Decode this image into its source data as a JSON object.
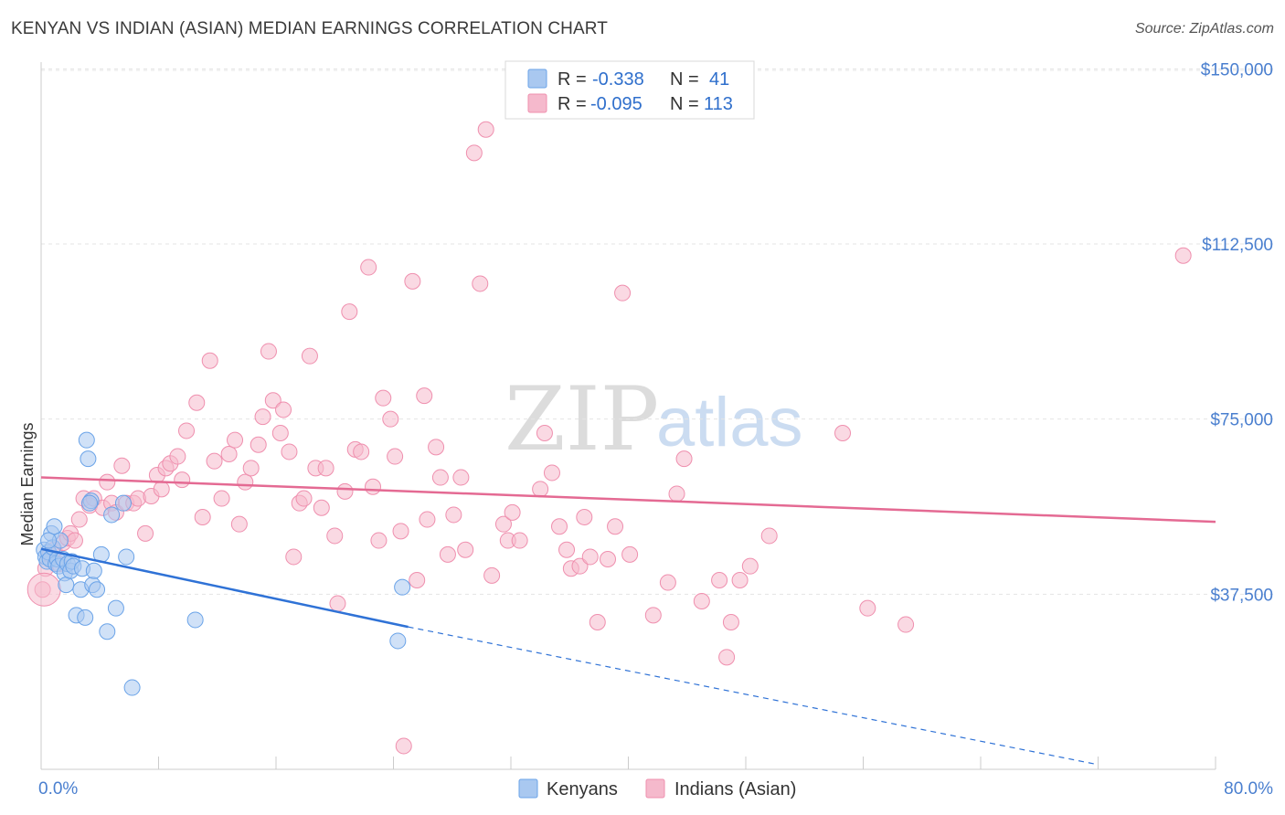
{
  "header": {
    "title": "KENYAN VS INDIAN (ASIAN) MEDIAN EARNINGS CORRELATION CHART",
    "source": "Source: ZipAtlas.com"
  },
  "watermark": {
    "zip": "ZIP",
    "atlas": "atlas"
  },
  "legend_top": {
    "rows": [
      {
        "r_label": "R =",
        "r_value": "-0.338",
        "n_label": "N =",
        "n_value": "41",
        "color": "#a9c8f0"
      },
      {
        "r_label": "R =",
        "r_value": "-0.095",
        "n_label": "N =",
        "n_value": "113",
        "color": "#f5b9cc"
      }
    ]
  },
  "legend_bottom": {
    "items": [
      {
        "label": "Kenyans",
        "color": "#a9c8f0"
      },
      {
        "label": "Indians (Asian)",
        "color": "#f5b9cc"
      }
    ]
  },
  "chart_data": {
    "type": "scatter",
    "title": "KENYAN VS INDIAN (ASIAN) MEDIAN EARNINGS CORRELATION CHART",
    "xlabel": "",
    "ylabel": "Median Earnings",
    "xlim": [
      0,
      80
    ],
    "ylim": [
      0,
      153000
    ],
    "x_tick_labels": [
      "0.0%",
      "80.0%"
    ],
    "y_ticks": [
      37500,
      75000,
      112500,
      150000
    ],
    "y_tick_labels": [
      "$37,500",
      "$75,000",
      "$112,500",
      "$150,000"
    ],
    "grid": true,
    "legend_placement": "top-center",
    "series": [
      {
        "name": "Kenyans",
        "color": "#6aa3e8",
        "fill": "#a9c8f0",
        "line_color": "#2f72d6",
        "trend": {
          "x0": 0,
          "y0": 47200,
          "x1": 25,
          "y1": 30500,
          "dashed_to_x": 72,
          "dashed_y_end": 1000
        },
        "points": [
          [
            0.2,
            47000
          ],
          [
            0.3,
            45500
          ],
          [
            0.4,
            44500
          ],
          [
            0.5,
            46500
          ],
          [
            0.6,
            45000
          ],
          [
            0.7,
            50500
          ],
          [
            0.8,
            47500
          ],
          [
            0.9,
            52000
          ],
          [
            1.0,
            44000
          ],
          [
            1.1,
            45000
          ],
          [
            1.2,
            43500
          ],
          [
            1.3,
            49000
          ],
          [
            1.5,
            45000
          ],
          [
            1.6,
            42000
          ],
          [
            1.7,
            39500
          ],
          [
            1.8,
            44000
          ],
          [
            2.0,
            42500
          ],
          [
            2.1,
            44500
          ],
          [
            2.2,
            43500
          ],
          [
            2.4,
            33000
          ],
          [
            2.7,
            38500
          ],
          [
            2.8,
            43000
          ],
          [
            3.0,
            32500
          ],
          [
            3.1,
            70500
          ],
          [
            3.2,
            66500
          ],
          [
            3.4,
            57500
          ],
          [
            3.5,
            39500
          ],
          [
            3.6,
            42500
          ],
          [
            3.8,
            38500
          ],
          [
            4.1,
            46000
          ],
          [
            4.5,
            29500
          ],
          [
            4.8,
            54500
          ],
          [
            5.1,
            34500
          ],
          [
            5.6,
            57000
          ],
          [
            5.8,
            45500
          ],
          [
            6.2,
            17500
          ],
          [
            10.5,
            32000
          ],
          [
            24.6,
            39000
          ],
          [
            24.3,
            27500
          ],
          [
            3.3,
            57000
          ],
          [
            0.5,
            49000
          ]
        ]
      },
      {
        "name": "Indians (Asian)",
        "color": "#ef8fae",
        "fill": "#f5b9cc",
        "line_color": "#e46a93",
        "trend": {
          "x0": 0,
          "y0": 62500,
          "x1": 80,
          "y1": 53000
        },
        "points": [
          [
            0.1,
            38500
          ],
          [
            0.3,
            43000
          ],
          [
            0.6,
            46000
          ],
          [
            0.9,
            47000
          ],
          [
            1.2,
            44000
          ],
          [
            1.5,
            48500
          ],
          [
            1.8,
            49500
          ],
          [
            2.0,
            50500
          ],
          [
            2.3,
            49000
          ],
          [
            2.6,
            53500
          ],
          [
            2.9,
            58000
          ],
          [
            3.3,
            56500
          ],
          [
            3.6,
            58000
          ],
          [
            4.2,
            56000
          ],
          [
            4.5,
            61500
          ],
          [
            4.8,
            57000
          ],
          [
            5.1,
            55000
          ],
          [
            5.5,
            65000
          ],
          [
            5.8,
            57000
          ],
          [
            6.3,
            57000
          ],
          [
            6.6,
            58000
          ],
          [
            7.1,
            50500
          ],
          [
            7.5,
            58500
          ],
          [
            7.9,
            63000
          ],
          [
            8.2,
            60000
          ],
          [
            8.5,
            64500
          ],
          [
            8.8,
            65500
          ],
          [
            9.3,
            67000
          ],
          [
            9.6,
            62000
          ],
          [
            9.9,
            72500
          ],
          [
            10.6,
            78500
          ],
          [
            11.0,
            54000
          ],
          [
            11.5,
            87500
          ],
          [
            11.8,
            66000
          ],
          [
            12.3,
            58000
          ],
          [
            12.8,
            67500
          ],
          [
            13.2,
            70500
          ],
          [
            13.5,
            52500
          ],
          [
            13.9,
            61500
          ],
          [
            14.3,
            64500
          ],
          [
            14.8,
            69500
          ],
          [
            15.1,
            75500
          ],
          [
            15.5,
            89500
          ],
          [
            15.8,
            79000
          ],
          [
            16.3,
            72000
          ],
          [
            16.5,
            77000
          ],
          [
            16.9,
            68000
          ],
          [
            17.2,
            45500
          ],
          [
            17.6,
            57000
          ],
          [
            17.9,
            58000
          ],
          [
            18.3,
            88500
          ],
          [
            18.7,
            64500
          ],
          [
            19.1,
            56000
          ],
          [
            19.4,
            64500
          ],
          [
            20.0,
            50000
          ],
          [
            20.2,
            35500
          ],
          [
            20.7,
            59500
          ],
          [
            21.0,
            98000
          ],
          [
            21.4,
            68500
          ],
          [
            21.8,
            68000
          ],
          [
            22.3,
            107500
          ],
          [
            22.6,
            60500
          ],
          [
            23.0,
            49000
          ],
          [
            23.3,
            79500
          ],
          [
            23.8,
            75000
          ],
          [
            24.1,
            67000
          ],
          [
            24.5,
            51000
          ],
          [
            24.7,
            5000
          ],
          [
            25.3,
            104500
          ],
          [
            25.6,
            40500
          ],
          [
            26.1,
            80000
          ],
          [
            26.3,
            53500
          ],
          [
            26.9,
            69000
          ],
          [
            27.2,
            62500
          ],
          [
            27.7,
            46000
          ],
          [
            28.1,
            54500
          ],
          [
            28.6,
            62500
          ],
          [
            28.9,
            47000
          ],
          [
            29.5,
            132000
          ],
          [
            29.9,
            104000
          ],
          [
            30.3,
            137000
          ],
          [
            30.7,
            41500
          ],
          [
            31.5,
            52500
          ],
          [
            31.8,
            49000
          ],
          [
            32.1,
            55000
          ],
          [
            32.6,
            49000
          ],
          [
            34.0,
            60000
          ],
          [
            34.3,
            72000
          ],
          [
            34.8,
            63500
          ],
          [
            35.3,
            52000
          ],
          [
            35.8,
            47000
          ],
          [
            36.1,
            43000
          ],
          [
            36.7,
            43500
          ],
          [
            37.0,
            54000
          ],
          [
            37.4,
            45500
          ],
          [
            37.9,
            31500
          ],
          [
            38.6,
            45000
          ],
          [
            39.1,
            52000
          ],
          [
            39.6,
            102000
          ],
          [
            40.1,
            46000
          ],
          [
            41.7,
            33000
          ],
          [
            42.7,
            40000
          ],
          [
            43.3,
            59000
          ],
          [
            43.8,
            66500
          ],
          [
            45.0,
            36000
          ],
          [
            46.2,
            40500
          ],
          [
            46.7,
            24000
          ],
          [
            47.0,
            31500
          ],
          [
            47.6,
            40500
          ],
          [
            48.3,
            43500
          ],
          [
            49.6,
            50000
          ],
          [
            54.6,
            72000
          ],
          [
            56.3,
            34500
          ],
          [
            58.9,
            31000
          ],
          [
            77.8,
            110000
          ]
        ]
      }
    ]
  }
}
